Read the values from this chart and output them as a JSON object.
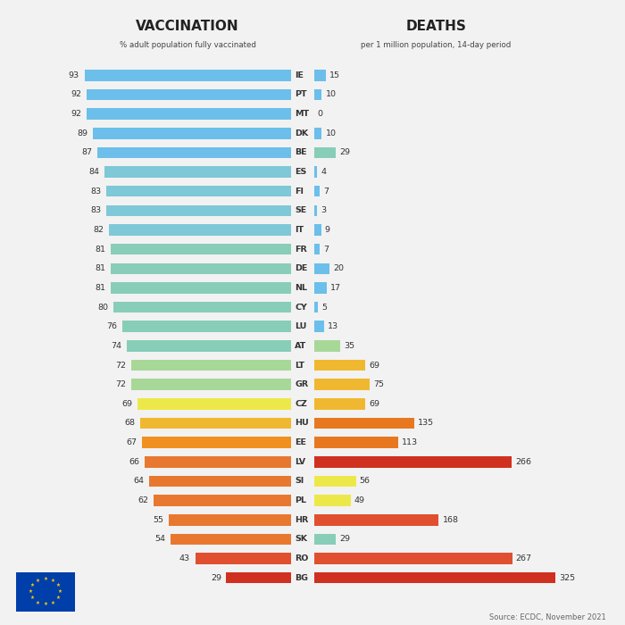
{
  "countries": [
    "IE",
    "PT",
    "MT",
    "DK",
    "BE",
    "ES",
    "FI",
    "SE",
    "IT",
    "FR",
    "DE",
    "NL",
    "CY",
    "LU",
    "AT",
    "LT",
    "GR",
    "CZ",
    "HU",
    "EE",
    "LV",
    "SI",
    "PL",
    "HR",
    "SK",
    "RO",
    "BG"
  ],
  "vacc": [
    93,
    92,
    92,
    89,
    87,
    84,
    83,
    83,
    82,
    81,
    81,
    81,
    80,
    76,
    74,
    72,
    72,
    69,
    68,
    67,
    66,
    64,
    62,
    55,
    54,
    43,
    29
  ],
  "deaths": [
    15,
    10,
    0,
    10,
    29,
    4,
    7,
    3,
    9,
    7,
    20,
    17,
    5,
    13,
    35,
    69,
    75,
    69,
    135,
    113,
    266,
    56,
    49,
    168,
    29,
    267,
    325
  ],
  "vacc_colors": [
    "#6BBFEA",
    "#6BBFEA",
    "#6BBFEA",
    "#6BBFEA",
    "#6BBFEA",
    "#7EC8D8",
    "#7EC8D8",
    "#7EC8D8",
    "#7EC8D8",
    "#88CDB8",
    "#88CDB8",
    "#88CDB8",
    "#88CDB8",
    "#88CDB8",
    "#88CDB8",
    "#A8D898",
    "#A8D898",
    "#EDE84A",
    "#F0B830",
    "#F09020",
    "#E87830",
    "#E87830",
    "#E87830",
    "#E87830",
    "#E87830",
    "#E05030",
    "#D03020"
  ],
  "deaths_colors": [
    "#6BBFEA",
    "#6BBFEA",
    "#6BBFEA",
    "#6BBFEA",
    "#88CDB8",
    "#6BBFEA",
    "#6BBFEA",
    "#6BBFEA",
    "#6BBFEA",
    "#6BBFEA",
    "#6BBFEA",
    "#6BBFEA",
    "#6BBFEA",
    "#6BBFEA",
    "#A8D898",
    "#F0B830",
    "#F0B830",
    "#F0B830",
    "#E87820",
    "#E87820",
    "#D03020",
    "#EDE84A",
    "#EDE84A",
    "#E05030",
    "#88CDB8",
    "#E05030",
    "#D03020"
  ],
  "title_vacc": "VACCINATION",
  "title_deaths": "DEATHS",
  "subtitle_vacc": "% adult population fully vaccinated",
  "subtitle_deaths": "per 1 million population, 14-day period",
  "source": "Source: ECDC, November 2021",
  "bg_color": "#F2F2F2",
  "max_vacc": 93,
  "max_deaths": 325
}
